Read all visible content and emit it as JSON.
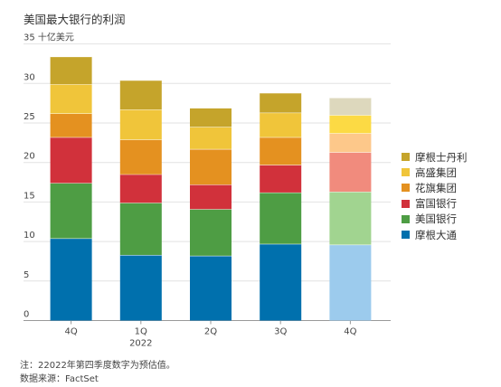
{
  "chart_data": {
    "type": "bar",
    "stacked": true,
    "title": "美国最大银行的利润",
    "ylabel": "35 十亿美元",
    "ylim": [
      0,
      35
    ],
    "yticks": [
      0,
      5,
      10,
      15,
      20,
      25,
      30
    ],
    "categories": [
      "4Q",
      "1Q",
      "2Q",
      "3Q",
      "4Q"
    ],
    "year_label": "2022",
    "estimated_category_index": 4,
    "series": [
      {
        "name": "摩根大通",
        "color": "#0070ad",
        "estimate_color": "#9ccbed",
        "values": [
          10.4,
          8.3,
          8.2,
          9.7,
          9.6
        ]
      },
      {
        "name": "美国银行",
        "color": "#4e9d44",
        "estimate_color": "#a1d490",
        "values": [
          7.0,
          6.6,
          5.9,
          6.5,
          6.7
        ]
      },
      {
        "name": "富国银行",
        "color": "#d1313b",
        "estimate_color": "#f18b7d",
        "values": [
          5.8,
          3.6,
          3.1,
          3.5,
          5.0
        ]
      },
      {
        "name": "花旗集团",
        "color": "#e49120",
        "estimate_color": "#fdc88a",
        "values": [
          3.0,
          4.4,
          4.5,
          3.5,
          2.4
        ]
      },
      {
        "name": "高盛集团",
        "color": "#f0c53a",
        "estimate_color": "#fcda44",
        "values": [
          3.7,
          3.8,
          2.8,
          3.1,
          2.3
        ]
      },
      {
        "name": "摩根士丹利",
        "color": "#c5a42b",
        "estimate_color": "#ddd8bd",
        "values": [
          3.5,
          3.7,
          2.4,
          2.5,
          2.2
        ]
      }
    ],
    "legend_position": "right",
    "grid": true
  },
  "footnote": "注：22022年第四季度数字为预估值。",
  "source": "数据来源：FactSet"
}
